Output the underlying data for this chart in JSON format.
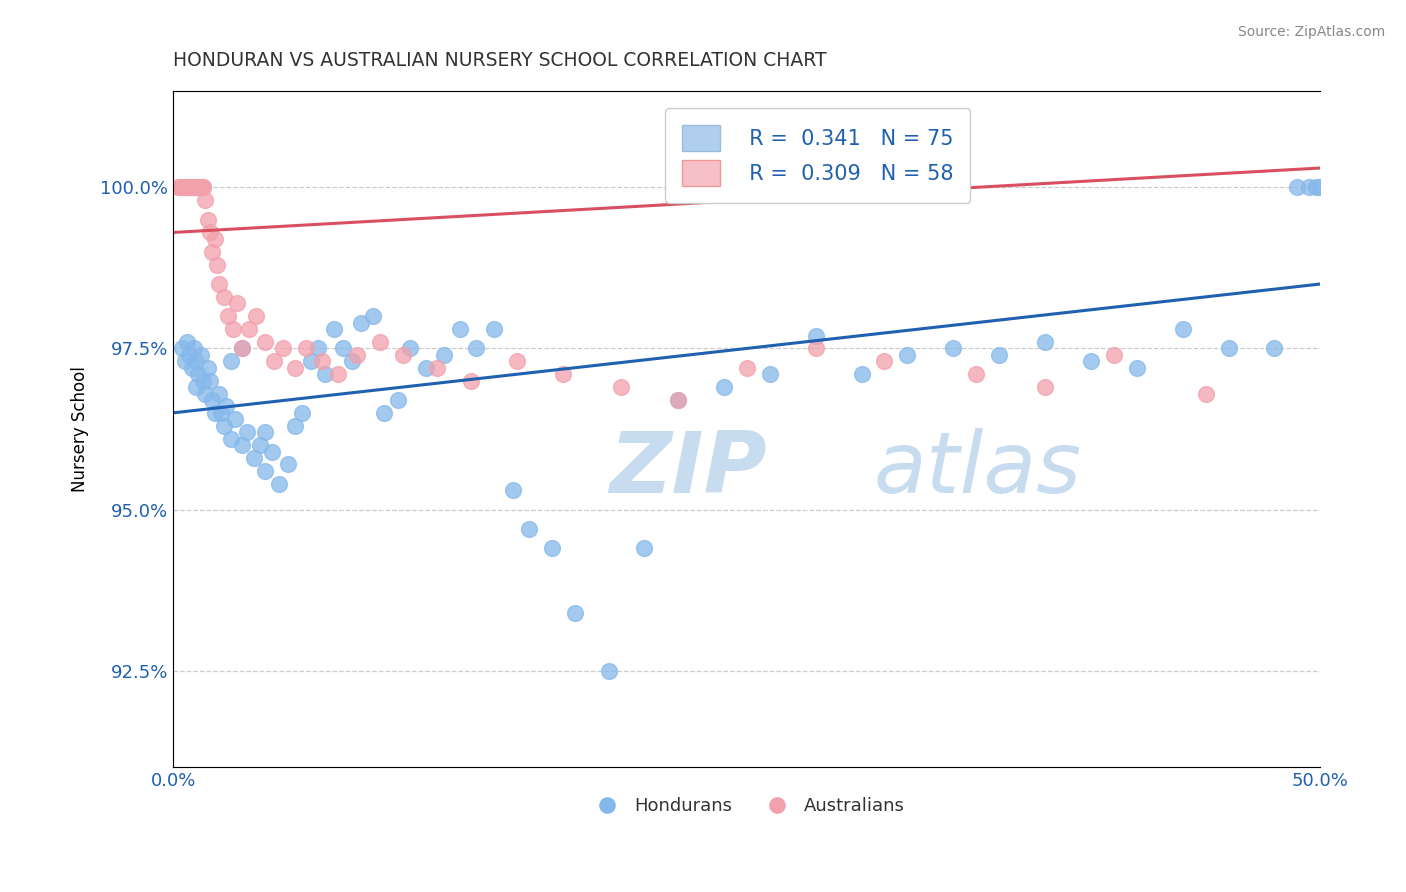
{
  "title": "HONDURAN VS AUSTRALIAN NURSERY SCHOOL CORRELATION CHART",
  "source": "Source: ZipAtlas.com",
  "ylabel": "Nursery School",
  "xlim": [
    0.0,
    50.0
  ],
  "ylim": [
    91.0,
    101.5
  ],
  "yticks": [
    92.5,
    95.0,
    97.5,
    100.0
  ],
  "ytick_labels": [
    "92.5%",
    "95.0%",
    "97.5%",
    "100.0%"
  ],
  "xticks": [
    0.0,
    6.25,
    12.5,
    18.75,
    25.0,
    31.25,
    37.5,
    43.75,
    50.0
  ],
  "xtick_labels": [
    "0.0%",
    "",
    "",
    "",
    "",
    "",
    "",
    "",
    "50.0%"
  ],
  "blue_R": "0.341",
  "blue_N": "75",
  "pink_R": "0.309",
  "pink_N": "58",
  "blue_color": "#85B8EA",
  "pink_color": "#F2A0AC",
  "blue_line_color": "#2060B0",
  "pink_line_color": "#D85060",
  "legend_blue_fill": "#B0CFEF",
  "legend_pink_fill": "#F7C0C8",
  "watermark_zip_color": "#C8DCF0",
  "watermark_atlas_color": "#C8DCF0",
  "grid_color": "#CCCCCC",
  "title_color": "#333333",
  "axis_label_color": "#2060B0",
  "blue_line_x0": 0.0,
  "blue_line_y0": 96.5,
  "blue_line_x1": 50.0,
  "blue_line_y1": 98.5,
  "pink_line_x0": 0.0,
  "pink_line_y0": 99.3,
  "pink_line_x1": 50.0,
  "pink_line_y1": 100.3,
  "hondurans_x": [
    0.4,
    0.5,
    0.6,
    0.7,
    0.8,
    0.9,
    1.0,
    1.0,
    1.1,
    1.2,
    1.3,
    1.4,
    1.5,
    1.6,
    1.7,
    1.8,
    2.0,
    2.1,
    2.2,
    2.3,
    2.5,
    2.7,
    3.0,
    3.2,
    3.5,
    3.8,
    4.0,
    4.3,
    4.6,
    5.0,
    5.3,
    5.6,
    6.0,
    6.3,
    6.6,
    7.0,
    7.4,
    7.8,
    8.2,
    8.7,
    9.2,
    9.8,
    10.3,
    11.0,
    11.8,
    12.5,
    13.2,
    14.0,
    14.8,
    15.5,
    16.5,
    17.5,
    19.0,
    20.5,
    22.0,
    24.0,
    26.0,
    28.0,
    30.0,
    32.0,
    34.0,
    36.0,
    38.0,
    40.0,
    42.0,
    44.0,
    46.0,
    48.0,
    49.0,
    49.5,
    49.8,
    50.0,
    2.5,
    3.0,
    4.0
  ],
  "hondurans_y": [
    97.5,
    97.3,
    97.6,
    97.4,
    97.2,
    97.5,
    97.3,
    96.9,
    97.1,
    97.4,
    97.0,
    96.8,
    97.2,
    97.0,
    96.7,
    96.5,
    96.8,
    96.5,
    96.3,
    96.6,
    96.1,
    96.4,
    96.0,
    96.2,
    95.8,
    96.0,
    95.6,
    95.9,
    95.4,
    95.7,
    96.3,
    96.5,
    97.3,
    97.5,
    97.1,
    97.8,
    97.5,
    97.3,
    97.9,
    98.0,
    96.5,
    96.7,
    97.5,
    97.2,
    97.4,
    97.8,
    97.5,
    97.8,
    95.3,
    94.7,
    94.4,
    93.4,
    92.5,
    94.4,
    96.7,
    96.9,
    97.1,
    97.7,
    97.1,
    97.4,
    97.5,
    97.4,
    97.6,
    97.3,
    97.2,
    97.8,
    97.5,
    97.5,
    100.0,
    100.0,
    100.0,
    100.0,
    97.3,
    97.5,
    96.2
  ],
  "australians_x": [
    0.2,
    0.3,
    0.4,
    0.5,
    0.5,
    0.6,
    0.6,
    0.7,
    0.7,
    0.8,
    0.8,
    0.9,
    0.9,
    1.0,
    1.0,
    1.1,
    1.1,
    1.2,
    1.2,
    1.3,
    1.3,
    1.4,
    1.5,
    1.6,
    1.7,
    1.8,
    1.9,
    2.0,
    2.2,
    2.4,
    2.6,
    2.8,
    3.0,
    3.3,
    3.6,
    4.0,
    4.4,
    4.8,
    5.3,
    5.8,
    6.5,
    7.2,
    8.0,
    9.0,
    10.0,
    11.5,
    13.0,
    15.0,
    17.0,
    19.5,
    22.0,
    25.0,
    28.0,
    31.0,
    35.0,
    38.0,
    41.0,
    45.0
  ],
  "australians_y": [
    100.0,
    100.0,
    100.0,
    100.0,
    100.0,
    100.0,
    100.0,
    100.0,
    100.0,
    100.0,
    100.0,
    100.0,
    100.0,
    100.0,
    100.0,
    100.0,
    100.0,
    100.0,
    100.0,
    100.0,
    100.0,
    99.8,
    99.5,
    99.3,
    99.0,
    99.2,
    98.8,
    98.5,
    98.3,
    98.0,
    97.8,
    98.2,
    97.5,
    97.8,
    98.0,
    97.6,
    97.3,
    97.5,
    97.2,
    97.5,
    97.3,
    97.1,
    97.4,
    97.6,
    97.4,
    97.2,
    97.0,
    97.3,
    97.1,
    96.9,
    96.7,
    97.2,
    97.5,
    97.3,
    97.1,
    96.9,
    97.4,
    96.8
  ]
}
